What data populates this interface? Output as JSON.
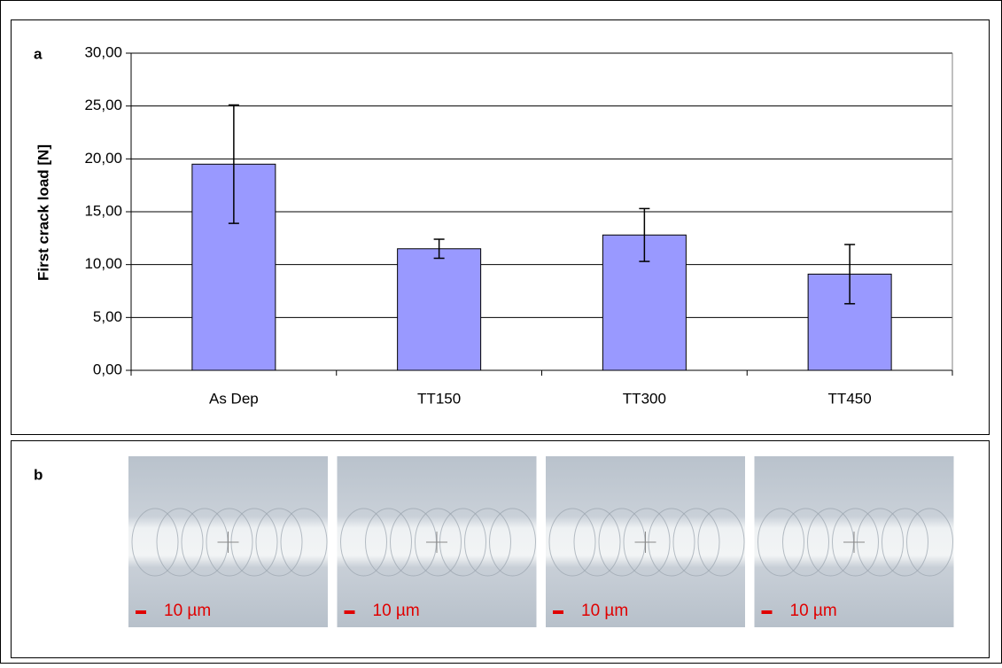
{
  "chart_data": {
    "type": "bar",
    "panel_label": "a",
    "ylabel": "First crack load [N]",
    "categories": [
      "As Dep",
      "TT150",
      "TT300",
      "TT450"
    ],
    "values": [
      19.5,
      11.5,
      12.8,
      9.1
    ],
    "errors": [
      5.6,
      0.9,
      2.5,
      2.8
    ],
    "color": "#9999ff",
    "ylim": [
      0,
      30
    ],
    "yticks": [
      {
        "value": 0,
        "label": "0,00"
      },
      {
        "value": 5,
        "label": "5,00"
      },
      {
        "value": 10,
        "label": "10,00"
      },
      {
        "value": 15,
        "label": "15,00"
      },
      {
        "value": 20,
        "label": "20,00"
      },
      {
        "value": 25,
        "label": "25,00"
      },
      {
        "value": 30,
        "label": "30,00"
      }
    ],
    "grid": true
  },
  "panel_b": {
    "label": "b",
    "images": [
      {
        "scale_label": "10 µm"
      },
      {
        "scale_label": "10 µm"
      },
      {
        "scale_label": "10 µm"
      },
      {
        "scale_label": "10 µm"
      }
    ]
  }
}
